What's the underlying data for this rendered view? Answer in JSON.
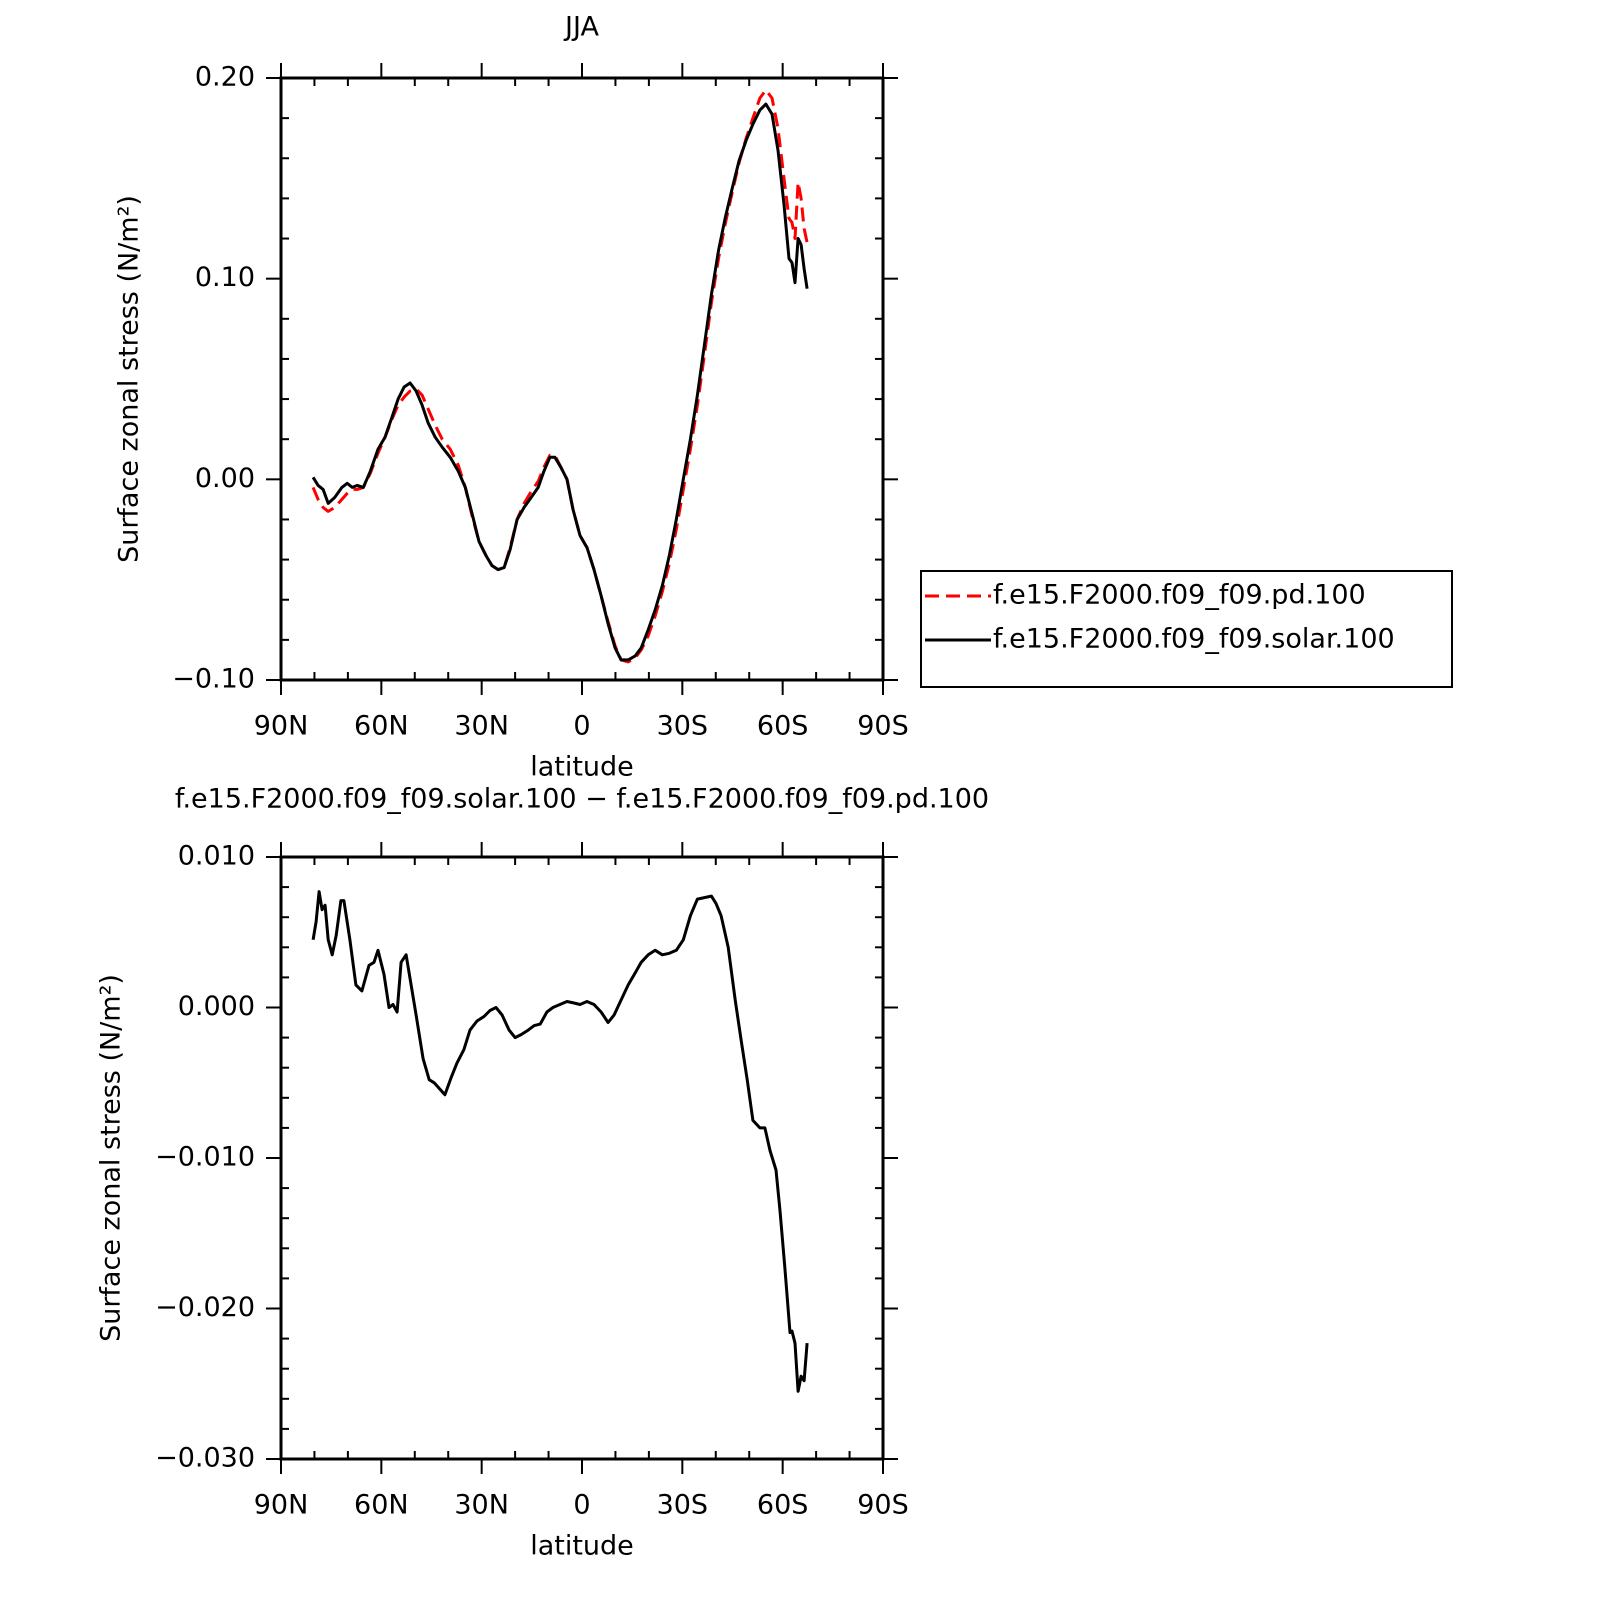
{
  "chart_data": [
    {
      "type": "line",
      "title": "JJA",
      "xlabel": "latitude",
      "ylabel": "Surface zonal stress (N/m²)",
      "xlim": [
        90,
        -90
      ],
      "xticks": [
        {
          "value": 90,
          "label": "90N"
        },
        {
          "value": 60,
          "label": "60N"
        },
        {
          "value": 30,
          "label": "30N"
        },
        0,
        {
          "value": -30,
          "label": "30S"
        },
        {
          "value": -60,
          "label": "60S"
        },
        {
          "value": -90,
          "label": "90S"
        }
      ],
      "xminorticks": [
        80,
        70,
        50,
        40,
        20,
        10,
        -10,
        -20,
        -40,
        -50,
        -70,
        -80
      ],
      "ylim": [
        -0.1,
        0.2
      ],
      "yticks": [
        {
          "value": -0.1,
          "label": "−0.10"
        },
        {
          "value": 0.0,
          "label": "0.00"
        },
        {
          "value": 0.1,
          "label": "0.10"
        },
        {
          "value": 0.2,
          "label": "0.20"
        }
      ],
      "yminorticks": [
        -0.08,
        -0.06,
        -0.04,
        -0.02,
        0.02,
        0.04,
        0.06,
        0.08,
        0.12,
        0.14,
        0.16,
        0.18
      ],
      "legend": "right",
      "x": [
        80.4,
        78.9,
        77.4,
        75.9,
        73.9,
        71.8,
        70.2,
        68.7,
        67.2,
        65.4,
        63.3,
        61.0,
        58.9,
        56.8,
        55.0,
        53.2,
        51.4,
        49.6,
        47.8,
        46.0,
        43.9,
        41.8,
        39.4,
        37.0,
        34.9,
        32.9,
        30.8,
        28.7,
        26.9,
        25.1,
        23.3,
        21.5,
        19.4,
        17.3,
        15.2,
        13.1,
        11.4,
        9.6,
        8.1,
        6.3,
        4.5,
        2.7,
        0.6,
        -1.5,
        -3.6,
        -5.7,
        -7.8,
        -9.9,
        -11.7,
        -13.8,
        -15.9,
        -17.7,
        -19.8,
        -21.9,
        -24.0,
        -26.1,
        -28.2,
        -30.3,
        -32.4,
        -34.5,
        -36.6,
        -38.7,
        -40.8,
        -42.8,
        -44.9,
        -47.0,
        -49.1,
        -51.1,
        -53.2,
        -55.0,
        -56.8,
        -58.6,
        -60.4,
        -61.9,
        -62.8,
        -63.7,
        -64.6,
        -65.5,
        -66.4,
        -67.3
      ],
      "series": [
        {
          "name": "f.e15.F2000.f09_f09.pd.100",
          "color": "#ff0000",
          "dashed": true,
          "values": [
            -0.004,
            -0.01,
            -0.014,
            -0.016,
            -0.014,
            -0.01,
            -0.007,
            -0.005,
            -0.005,
            -0.004,
            0.003,
            0.013,
            0.021,
            0.03,
            0.037,
            0.041,
            0.044,
            0.045,
            0.042,
            0.035,
            0.027,
            0.02,
            0.015,
            0.007,
            -0.004,
            -0.018,
            -0.031,
            -0.038,
            -0.043,
            -0.045,
            -0.044,
            -0.034,
            -0.02,
            -0.012,
            -0.006,
            -0.001,
            0.006,
            0.012,
            0.012,
            0.006,
            0.0,
            -0.015,
            -0.028,
            -0.034,
            -0.045,
            -0.058,
            -0.071,
            -0.083,
            -0.09,
            -0.091,
            -0.089,
            -0.085,
            -0.078,
            -0.068,
            -0.056,
            -0.042,
            -0.025,
            -0.005,
            0.015,
            0.037,
            0.062,
            0.088,
            0.11,
            0.127,
            0.143,
            0.158,
            0.17,
            0.18,
            0.19,
            0.194,
            0.19,
            0.175,
            0.15,
            0.13,
            0.128,
            0.12,
            0.148,
            0.14,
            0.125,
            0.118
          ]
        },
        {
          "name": "f.e15.F2000.f09_f09.solar.100",
          "color": "#000000",
          "dashed": false,
          "values": [
            0.001,
            -0.003,
            -0.005,
            -0.012,
            -0.009,
            -0.004,
            -0.002,
            -0.004,
            -0.003,
            -0.004,
            0.004,
            0.015,
            0.021,
            0.031,
            0.04,
            0.046,
            0.048,
            0.044,
            0.037,
            0.028,
            0.021,
            0.016,
            0.011,
            0.004,
            -0.004,
            -0.017,
            -0.031,
            -0.038,
            -0.043,
            -0.045,
            -0.044,
            -0.035,
            -0.02,
            -0.014,
            -0.009,
            -0.004,
            0.004,
            0.011,
            0.011,
            0.006,
            0.0,
            -0.015,
            -0.028,
            -0.034,
            -0.045,
            -0.058,
            -0.072,
            -0.084,
            -0.09,
            -0.09,
            -0.088,
            -0.084,
            -0.075,
            -0.065,
            -0.053,
            -0.038,
            -0.02,
            0.0,
            0.02,
            0.042,
            0.067,
            0.092,
            0.114,
            0.13,
            0.145,
            0.159,
            0.169,
            0.177,
            0.184,
            0.187,
            0.182,
            0.164,
            0.137,
            0.11,
            0.108,
            0.098,
            0.12,
            0.117,
            0.105,
            0.095
          ]
        }
      ]
    },
    {
      "type": "line",
      "title": "f.e15.F2000.f09_f09.solar.100 − f.e15.F2000.f09_f09.pd.100",
      "xlabel": "latitude",
      "ylabel": "Surface zonal stress (N/m²)",
      "xlim": [
        90,
        -90
      ],
      "xticks": [
        {
          "value": 90,
          "label": "90N"
        },
        {
          "value": 60,
          "label": "60N"
        },
        {
          "value": 30,
          "label": "30N"
        },
        0,
        {
          "value": -30,
          "label": "30S"
        },
        {
          "value": -60,
          "label": "60S"
        },
        {
          "value": -90,
          "label": "90S"
        }
      ],
      "xminorticks": [
        80,
        70,
        50,
        40,
        20,
        10,
        -10,
        -20,
        -40,
        -50,
        -70,
        -80
      ],
      "ylim": [
        -0.03,
        0.01
      ],
      "yticks": [
        {
          "value": -0.03,
          "label": "−0.030"
        },
        {
          "value": -0.02,
          "label": "−0.020"
        },
        {
          "value": -0.01,
          "label": "−0.010"
        },
        {
          "value": 0.0,
          "label": "0.000"
        },
        {
          "value": 0.01,
          "label": "0.010"
        }
      ],
      "yminorticks": [
        -0.028,
        -0.026,
        -0.024,
        -0.022,
        -0.018,
        -0.016,
        -0.014,
        -0.012,
        -0.008,
        -0.006,
        -0.004,
        -0.002,
        0.002,
        0.004,
        0.006,
        0.008
      ],
      "x": [
        80.4,
        79.5,
        78.6,
        77.7,
        76.8,
        75.9,
        74.7,
        73.5,
        72.1,
        71.2,
        69.4,
        67.6,
        65.8,
        63.7,
        62.2,
        61.0,
        59.2,
        57.7,
        56.5,
        55.3,
        54.1,
        52.6,
        51.1,
        49.6,
        47.5,
        45.7,
        44.2,
        43.0,
        41.0,
        39.2,
        37.4,
        35.3,
        33.5,
        31.4,
        29.3,
        27.5,
        25.7,
        23.9,
        21.8,
        20.0,
        18.2,
        16.1,
        14.3,
        12.5,
        10.5,
        8.7,
        6.6,
        4.5,
        2.4,
        0.6,
        -1.5,
        -3.6,
        -5.7,
        -7.8,
        -9.6,
        -11.7,
        -13.8,
        -15.9,
        -17.7,
        -19.8,
        -21.9,
        -24.0,
        -26.1,
        -28.2,
        -30.3,
        -32.4,
        -34.5,
        -36.6,
        -38.7,
        -40.1,
        -41.6,
        -43.7,
        -45.8,
        -47.6,
        -49.4,
        -51.1,
        -53.2,
        -54.7,
        -56.2,
        -58.0,
        -59.2,
        -60.7,
        -62.2,
        -62.8,
        -63.7,
        -64.6,
        -65.5,
        -66.4,
        -67.3
      ],
      "color": "#000000",
      "values": [
        0.0045,
        0.0057,
        0.0077,
        0.0065,
        0.0068,
        0.0045,
        0.0035,
        0.0048,
        0.0071,
        0.0071,
        0.0045,
        0.0015,
        0.0011,
        0.0028,
        0.003,
        0.0038,
        0.0022,
        0.0,
        0.0002,
        -0.0003,
        0.003,
        0.0035,
        0.0015,
        -0.0005,
        -0.0034,
        -0.0048,
        -0.005,
        -0.0053,
        -0.0058,
        -0.0047,
        -0.0037,
        -0.0028,
        -0.0015,
        -0.0009,
        -0.0006,
        -0.0002,
        0.0,
        -0.0005,
        -0.0015,
        -0.002,
        -0.0018,
        -0.0015,
        -0.0012,
        -0.0011,
        -0.0003,
        0.0,
        0.0002,
        0.0004,
        0.0003,
        0.0002,
        0.0004,
        0.0002,
        -0.0003,
        -0.001,
        -0.0005,
        0.0005,
        0.0015,
        0.0023,
        0.003,
        0.0035,
        0.0038,
        0.0035,
        0.0036,
        0.0038,
        0.0045,
        0.0061,
        0.0072,
        0.0073,
        0.0074,
        0.0069,
        0.0061,
        0.004,
        0.0005,
        -0.0022,
        -0.0048,
        -0.0075,
        -0.008,
        -0.008,
        -0.0095,
        -0.0108,
        -0.0135,
        -0.0174,
        -0.0216,
        -0.0215,
        -0.0223,
        -0.0255,
        -0.0245,
        -0.0248,
        -0.0223
      ]
    }
  ]
}
